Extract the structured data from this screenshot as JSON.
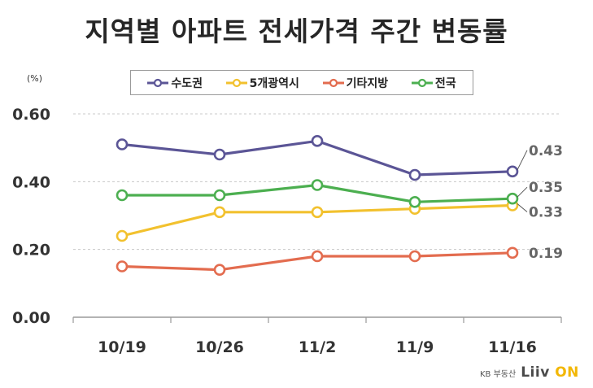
{
  "title": "지역별 아파트 전세가격 주간 변동률",
  "unit": "(%)",
  "brand": {
    "sub": "KB 부동산",
    "logo_main": "Liiv",
    "logo_accent": "ON"
  },
  "chart_data": {
    "type": "line",
    "title": "지역별 아파트 전세가격 주간 변동률",
    "xlabel": "",
    "ylabel": "(%)",
    "categories": [
      "10/19",
      "10/26",
      "11/2",
      "11/9",
      "11/16"
    ],
    "ylim": [
      0,
      0.6
    ],
    "yticks": [
      "0.00",
      "0.20",
      "0.40",
      "0.60"
    ],
    "grid": "horizontal dashed",
    "legend": "top",
    "series": [
      {
        "name": "수도권",
        "color": "#5b5596",
        "values": [
          0.51,
          0.48,
          0.52,
          0.42,
          0.43
        ],
        "end_label": "0.43"
      },
      {
        "name": "5개광역시",
        "color": "#f2c12e",
        "values": [
          0.24,
          0.31,
          0.31,
          0.32,
          0.33
        ],
        "end_label": "0.33"
      },
      {
        "name": "기타지방",
        "color": "#e36c4f",
        "values": [
          0.15,
          0.14,
          0.18,
          0.18,
          0.19
        ],
        "end_label": "0.19"
      },
      {
        "name": "전국",
        "color": "#4caf50",
        "values": [
          0.36,
          0.36,
          0.39,
          0.34,
          0.35
        ],
        "end_label": "0.35"
      }
    ]
  }
}
